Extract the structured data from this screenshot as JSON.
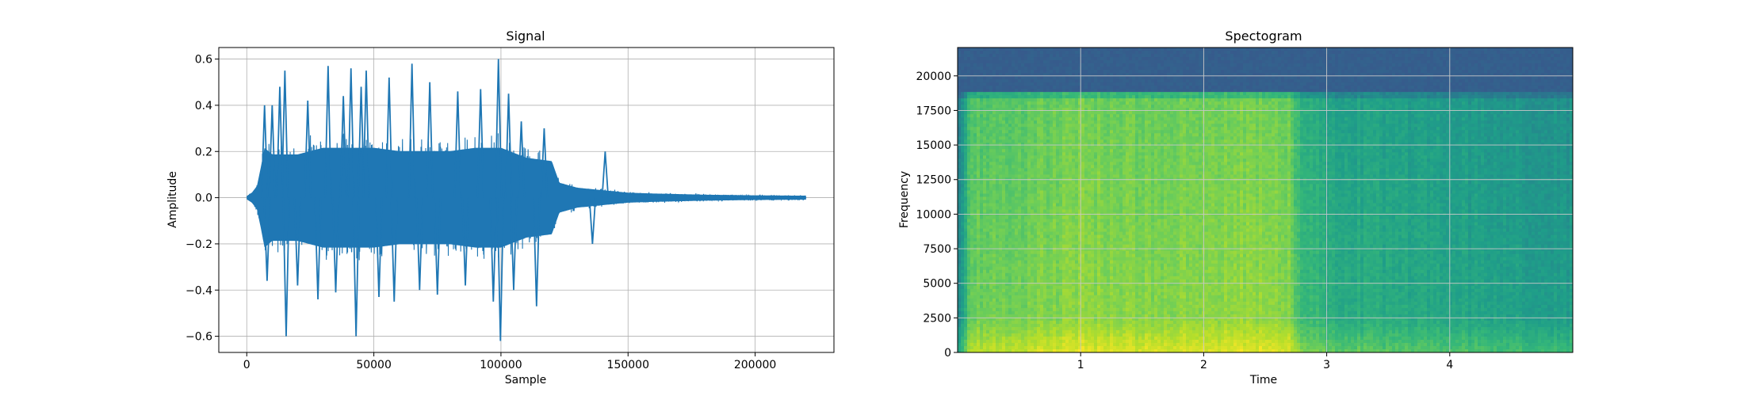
{
  "chart_data": [
    {
      "type": "line",
      "title": "Signal",
      "xlabel": "Sample",
      "ylabel": "Amplitude",
      "xlim": [
        -11000,
        231000
      ],
      "ylim": [
        -0.67,
        0.65
      ],
      "xticks": [
        0,
        50000,
        100000,
        150000,
        200000
      ],
      "yticks": [
        -0.6,
        -0.4,
        -0.2,
        0.0,
        0.2,
        0.4,
        0.6
      ],
      "xtick_labels": [
        "0",
        "50000",
        "100000",
        "150000",
        "200000"
      ],
      "ytick_labels": [
        "−0.6",
        "−0.4",
        "−0.2",
        "0.0",
        "0.2",
        "0.4",
        "0.6"
      ],
      "grid": true,
      "color": "#1f77b4",
      "x_range": [
        0,
        220000
      ],
      "envelope": {
        "x": [
          0,
          2000,
          4000,
          5500,
          7000,
          10000,
          20000,
          30000,
          40000,
          50000,
          60000,
          70000,
          80000,
          90000,
          100000,
          110000,
          120000,
          123000,
          130000,
          140000,
          150000,
          160000,
          180000,
          200000,
          220000
        ],
        "amp": [
          0.01,
          0.03,
          0.07,
          0.18,
          0.3,
          0.26,
          0.26,
          0.3,
          0.3,
          0.3,
          0.28,
          0.28,
          0.28,
          0.3,
          0.3,
          0.24,
          0.22,
          0.09,
          0.06,
          0.045,
          0.03,
          0.025,
          0.018,
          0.014,
          0.012
        ]
      },
      "spikes": [
        {
          "x": 7000,
          "y": 0.4
        },
        {
          "x": 8000,
          "y": -0.36
        },
        {
          "x": 10000,
          "y": 0.4
        },
        {
          "x": 13000,
          "y": 0.48
        },
        {
          "x": 15000,
          "y": 0.55
        },
        {
          "x": 15500,
          "y": -0.6
        },
        {
          "x": 20000,
          "y": -0.38
        },
        {
          "x": 24000,
          "y": 0.42
        },
        {
          "x": 28000,
          "y": -0.44
        },
        {
          "x": 32000,
          "y": 0.57
        },
        {
          "x": 35000,
          "y": -0.41
        },
        {
          "x": 38000,
          "y": 0.44
        },
        {
          "x": 41000,
          "y": 0.56
        },
        {
          "x": 43000,
          "y": -0.6
        },
        {
          "x": 45000,
          "y": 0.48
        },
        {
          "x": 47000,
          "y": 0.55
        },
        {
          "x": 52000,
          "y": -0.43
        },
        {
          "x": 56000,
          "y": 0.52
        },
        {
          "x": 58000,
          "y": -0.45
        },
        {
          "x": 65000,
          "y": 0.58
        },
        {
          "x": 68000,
          "y": -0.4
        },
        {
          "x": 72000,
          "y": 0.5
        },
        {
          "x": 75000,
          "y": -0.42
        },
        {
          "x": 83000,
          "y": 0.46
        },
        {
          "x": 86000,
          "y": -0.38
        },
        {
          "x": 92000,
          "y": 0.47
        },
        {
          "x": 97000,
          "y": -0.45
        },
        {
          "x": 99000,
          "y": 0.6
        },
        {
          "x": 99800,
          "y": -0.62
        },
        {
          "x": 103000,
          "y": 0.45
        },
        {
          "x": 105000,
          "y": -0.4
        },
        {
          "x": 108000,
          "y": 0.33
        },
        {
          "x": 114000,
          "y": -0.47
        },
        {
          "x": 117000,
          "y": 0.3
        },
        {
          "x": 136000,
          "y": -0.2
        },
        {
          "x": 141000,
          "y": 0.2
        }
      ]
    },
    {
      "type": "heatmap",
      "title": "Spectogram",
      "xlabel": "Time",
      "ylabel": "Frequency",
      "xlim": [
        0,
        5.0
      ],
      "ylim": [
        0,
        22050
      ],
      "xticks": [
        1,
        2,
        3,
        4
      ],
      "yticks": [
        0,
        2500,
        5000,
        7500,
        10000,
        12500,
        15000,
        17500,
        20000
      ],
      "xtick_labels": [
        "1",
        "2",
        "3",
        "4"
      ],
      "ytick_labels": [
        "0",
        "2500",
        "5000",
        "7500",
        "10000",
        "12500",
        "15000",
        "17500",
        "20000"
      ],
      "grid": true,
      "colormap": "viridis",
      "cutoff_frequency": 18800,
      "time_profile": {
        "t": [
          0,
          0.05,
          0.1,
          0.5,
          1.0,
          1.5,
          2.0,
          2.3,
          2.7,
          2.8,
          3.0,
          3.5,
          4.0,
          4.5,
          5.0
        ],
        "level": [
          0.45,
          0.62,
          0.78,
          0.8,
          0.84,
          0.82,
          0.83,
          0.85,
          0.82,
          0.7,
          0.64,
          0.62,
          0.6,
          0.58,
          0.56
        ]
      }
    }
  ]
}
